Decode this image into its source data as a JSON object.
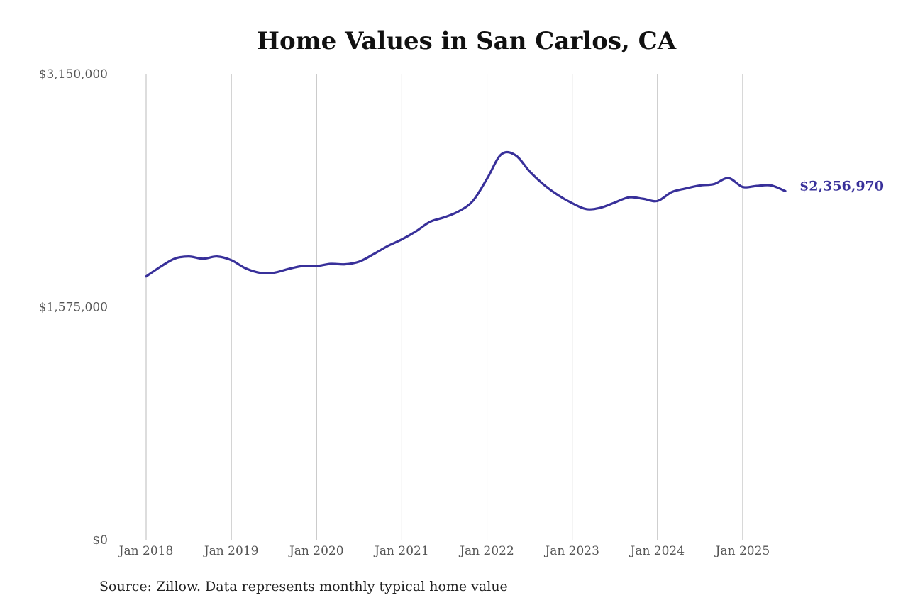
{
  "chart_data": {
    "type": "line",
    "title": "Home Values in San Carlos, CA",
    "xlabel": "",
    "ylabel": "",
    "ylim": [
      0,
      3150000
    ],
    "y_ticks": [
      "$0",
      "$1,575,000",
      "$3,150,000"
    ],
    "y_tick_values": [
      0,
      1575000,
      3150000
    ],
    "x_ticks": [
      "Jan 2018",
      "Jan 2019",
      "Jan 2020",
      "Jan 2021",
      "Jan 2022",
      "Jan 2023",
      "Jan 2024",
      "Jan 2025"
    ],
    "x_tick_dates": [
      "2018-01",
      "2019-01",
      "2020-01",
      "2021-01",
      "2022-01",
      "2023-01",
      "2024-01",
      "2025-01"
    ],
    "xlim": [
      "2018-01",
      "2025-07"
    ],
    "grid": "vertical",
    "line_color": "#38309a",
    "end_value_label": "$2,356,970",
    "series": [
      {
        "x": [
          "2018-01",
          "2018-03",
          "2018-05",
          "2018-07",
          "2018-09",
          "2018-11",
          "2019-01",
          "2019-03",
          "2019-05",
          "2019-07",
          "2019-09",
          "2019-11",
          "2020-01",
          "2020-03",
          "2020-05",
          "2020-07",
          "2020-09",
          "2020-11",
          "2021-01",
          "2021-03",
          "2021-05",
          "2021-07",
          "2021-09",
          "2021-11",
          "2022-01",
          "2022-03",
          "2022-05",
          "2022-07",
          "2022-09",
          "2022-11",
          "2023-01",
          "2023-03",
          "2023-05",
          "2023-07",
          "2023-09",
          "2023-11",
          "2024-01",
          "2024-03",
          "2024-05",
          "2024-07",
          "2024-09",
          "2024-11",
          "2025-01",
          "2025-03",
          "2025-05",
          "2025-07"
        ],
        "values": [
          1780000,
          1845000,
          1900000,
          1915000,
          1900000,
          1915000,
          1890000,
          1835000,
          1805000,
          1805000,
          1830000,
          1850000,
          1850000,
          1865000,
          1862000,
          1880000,
          1930000,
          1985000,
          2030000,
          2085000,
          2150000,
          2180000,
          2220000,
          2290000,
          2440000,
          2605000,
          2600000,
          2490000,
          2400000,
          2330000,
          2275000,
          2235000,
          2245000,
          2280000,
          2315000,
          2305000,
          2290000,
          2350000,
          2375000,
          2395000,
          2405000,
          2445000,
          2385000,
          2392000,
          2395000,
          2356970
        ]
      }
    ]
  },
  "source_note": "Source: Zillow. Data represents monthly typical home value"
}
